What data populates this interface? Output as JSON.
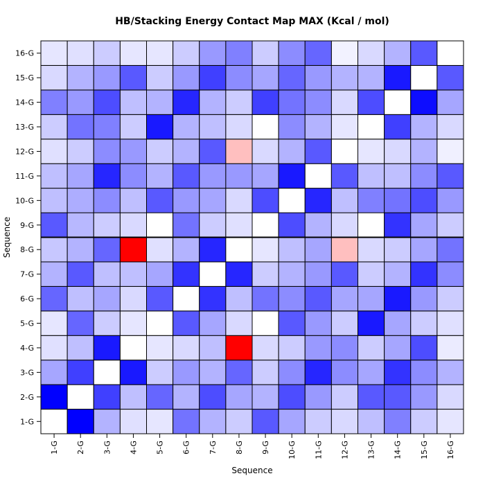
{
  "chart_data": {
    "type": "heatmap",
    "title": "HB/Stacking Energy Contact Map MAX (Kcal / mol)",
    "xlabel": "Sequence",
    "ylabel": "Sequence",
    "x_categories": [
      "1-G",
      "2-G",
      "3-G",
      "4-G",
      "5-G",
      "6-G",
      "7-G",
      "8-G",
      "9-G",
      "10-G",
      "11-G",
      "12-G",
      "13-G",
      "14-G",
      "15-G",
      "16-G"
    ],
    "y_categories": [
      "1-G",
      "2-G",
      "3-G",
      "4-G",
      "5-G",
      "6-G",
      "7-G",
      "8-G",
      "9-G",
      "10-G",
      "11-G",
      "12-G",
      "13-G",
      "14-G",
      "15-G",
      "16-G"
    ],
    "color_scale": {
      "negative": "#0000ff",
      "zero": "#ffffff",
      "positive": "#ff0000"
    },
    "grid": true,
    "matrix": [
      [
        0.0,
        -1.0,
        -0.35,
        -0.12,
        -0.1,
        -0.6,
        -0.3,
        -0.22,
        -0.65,
        -0.25,
        -0.25,
        -0.12,
        -0.2,
        -0.5,
        -0.15,
        -0.1
      ],
      [
        -1.0,
        0.0,
        -0.75,
        -0.25,
        -0.6,
        -0.25,
        -0.65,
        -0.3,
        -0.28,
        -0.32,
        -0.35,
        -0.2,
        -0.55,
        -0.4,
        -0.3,
        -0.12
      ],
      [
        -0.3,
        -0.75,
        0.0,
        -0.9,
        -0.2,
        -0.35,
        -0.25,
        -0.6,
        -0.2,
        -0.45,
        -0.85,
        -0.45,
        -0.5,
        -0.7,
        -0.4,
        -0.2
      ],
      [
        -0.12,
        -0.25,
        -0.9,
        0.0,
        -0.1,
        -0.15,
        -0.25,
        1.0,
        -0.15,
        -0.25,
        -0.45,
        -0.4,
        -0.2,
        -0.25,
        -0.65,
        -0.1
      ],
      [
        -0.1,
        -0.6,
        -0.2,
        -0.1,
        0.0,
        -0.65,
        -0.35,
        -0.12,
        0.0,
        -0.65,
        -0.3,
        -0.2,
        -0.9,
        -0.3,
        -0.2,
        -0.1
      ],
      [
        -0.55,
        -0.3,
        -0.4,
        -0.15,
        -0.65,
        0.0,
        -0.8,
        -0.3,
        -0.55,
        -0.4,
        -0.65,
        -0.3,
        -0.3,
        -0.85,
        -0.4,
        -0.2
      ],
      [
        -0.3,
        -0.7,
        -0.3,
        -0.25,
        -0.35,
        -0.8,
        0.0,
        -0.85,
        -0.2,
        -0.35,
        -0.4,
        -0.65,
        -0.25,
        -0.3,
        -0.75,
        -0.4
      ],
      [
        -0.2,
        -0.35,
        -0.6,
        1.0,
        -0.15,
        -0.25,
        -0.85,
        0.0,
        -0.12,
        -0.15,
        -0.4,
        0.25,
        -0.15,
        -0.2,
        -0.45,
        -0.5
      ],
      [
        -0.65,
        -0.3,
        -0.2,
        -0.15,
        0.0,
        -0.55,
        -0.2,
        -0.1,
        0.0,
        -0.7,
        -0.35,
        -0.15,
        0.0,
        -0.75,
        -0.35,
        -0.2
      ],
      [
        -0.35,
        -0.7,
        -0.45,
        -0.2,
        -0.65,
        -0.45,
        -0.3,
        -0.25,
        -0.7,
        0.0,
        -0.9,
        -0.3,
        -0.45,
        -0.55,
        -0.6,
        -0.45
      ],
      [
        -0.2,
        -0.4,
        -0.85,
        -0.4,
        -0.4,
        -0.65,
        -0.4,
        -0.35,
        -0.3,
        -0.85,
        0.0,
        -0.65,
        -0.3,
        -0.45,
        -0.4,
        -0.6
      ],
      [
        -0.15,
        -0.2,
        -0.45,
        -0.45,
        -0.2,
        -0.35,
        -0.65,
        0.25,
        -0.15,
        -0.25,
        -0.65,
        0.0,
        -0.1,
        -0.15,
        -0.3,
        -0.05
      ],
      [
        -0.25,
        -0.65,
        -0.35,
        -0.2,
        -0.9,
        -0.35,
        -0.2,
        -0.15,
        0.0,
        -0.5,
        -0.25,
        -0.1,
        0.0,
        -0.7,
        -0.3,
        -0.15
      ],
      [
        -0.5,
        -0.65,
        -0.8,
        -0.35,
        -0.35,
        -0.9,
        -0.3,
        -0.2,
        -0.8,
        -0.55,
        -0.25,
        -0.15,
        -0.75,
        0.0,
        -0.9,
        -0.3
      ],
      [
        -0.2,
        -0.4,
        -0.45,
        -0.7,
        -0.2,
        -0.4,
        -0.8,
        -0.35,
        -0.35,
        -0.7,
        -0.45,
        -0.3,
        -0.3,
        -0.95,
        0.0,
        -0.65
      ],
      [
        -0.1,
        -0.15,
        -0.3,
        -0.08,
        -0.12,
        -0.2,
        -0.45,
        -0.55,
        -0.2,
        -0.4,
        -0.65,
        -0.06,
        -0.15,
        -0.35,
        -0.65,
        0.0
      ]
    ]
  }
}
